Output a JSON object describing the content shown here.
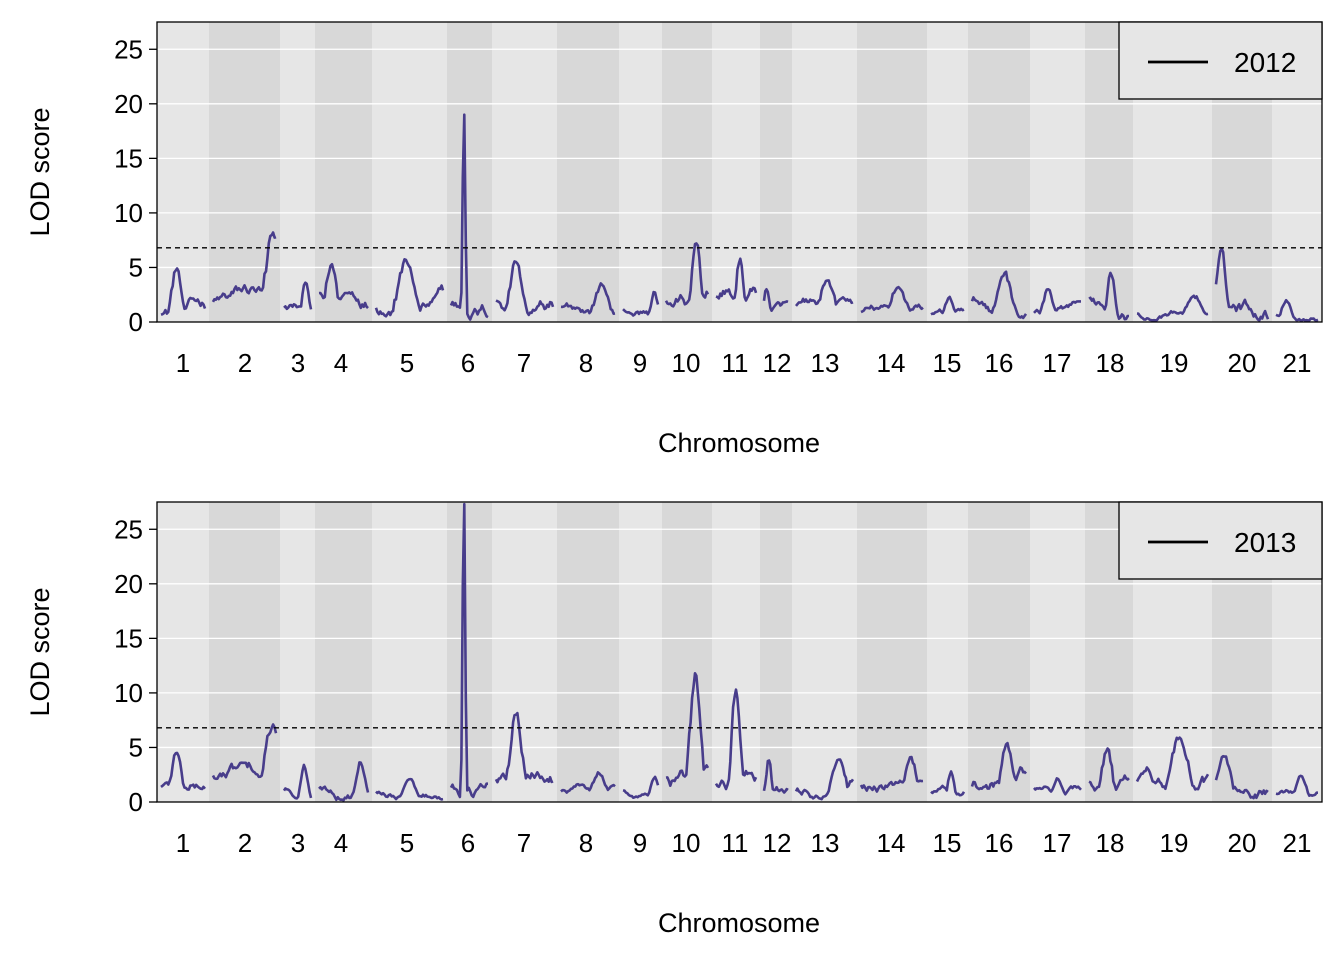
{
  "chart_data": [
    {
      "type": "line",
      "xlabel": "Chromosome",
      "ylabel": "LOD score",
      "ylim": [
        0,
        27.5
      ],
      "yticks": [
        0,
        5,
        10,
        15,
        20,
        25
      ],
      "threshold": 6.8,
      "threshold_style": "dashed",
      "grid": true,
      "legend_position": "top-right",
      "legend": [
        "2012"
      ],
      "line_color": "#483D8B",
      "chromosomes": [
        "1",
        "2",
        "3",
        "4",
        "5",
        "6",
        "7",
        "8",
        "9",
        "10",
        "11",
        "12",
        "13",
        "14",
        "15",
        "16",
        "17",
        "18",
        "19",
        "20",
        "21"
      ],
      "series": [
        {
          "name": "2012",
          "chromosome_peaks": [
            {
              "chr": "1",
              "peak": 4.9,
              "x": 0.35
            },
            {
              "chr": "2",
              "peak": 8.2,
              "x": 0.95
            },
            {
              "chr": "3",
              "peak": 3.6,
              "x": 0.8
            },
            {
              "chr": "4",
              "peak": 5.3,
              "x": 0.25
            },
            {
              "chr": "5",
              "peak": 5.7,
              "x": 0.45
            },
            {
              "chr": "6",
              "peak": 19.0,
              "x": 0.35
            },
            {
              "chr": "7",
              "peak": 5.5,
              "x": 0.35
            },
            {
              "chr": "8",
              "peak": 3.4,
              "x": 0.75
            },
            {
              "chr": "9",
              "peak": 2.7,
              "x": 0.9
            },
            {
              "chr": "10",
              "peak": 7.2,
              "x": 0.72
            },
            {
              "chr": "11",
              "peak": 5.8,
              "x": 0.6
            },
            {
              "chr": "12",
              "peak": 3.0,
              "x": 0.1
            },
            {
              "chr": "13",
              "peak": 3.8,
              "x": 0.55
            },
            {
              "chr": "14",
              "peak": 3.2,
              "x": 0.6
            },
            {
              "chr": "15",
              "peak": 2.3,
              "x": 0.55
            },
            {
              "chr": "16",
              "peak": 4.5,
              "x": 0.6
            },
            {
              "chr": "17",
              "peak": 3.0,
              "x": 0.3
            },
            {
              "chr": "18",
              "peak": 4.5,
              "x": 0.55
            },
            {
              "chr": "19",
              "peak": 2.4,
              "x": 0.8
            },
            {
              "chr": "20",
              "peak": 6.7,
              "x": 0.1
            },
            {
              "chr": "21",
              "peak": 2.0,
              "x": 0.25
            }
          ]
        }
      ]
    },
    {
      "type": "line",
      "xlabel": "Chromosome",
      "ylabel": "LOD score",
      "ylim": [
        0,
        27.5
      ],
      "yticks": [
        0,
        5,
        10,
        15,
        20,
        25
      ],
      "threshold": 6.8,
      "threshold_style": "dashed",
      "grid": true,
      "legend_position": "top-right",
      "legend": [
        "2013"
      ],
      "line_color": "#483D8B",
      "chromosomes": [
        "1",
        "2",
        "3",
        "4",
        "5",
        "6",
        "7",
        "8",
        "9",
        "10",
        "11",
        "12",
        "13",
        "14",
        "15",
        "16",
        "17",
        "18",
        "19",
        "20",
        "21"
      ],
      "series": [
        {
          "name": "2013",
          "chromosome_peaks": [
            {
              "chr": "1",
              "peak": 4.5,
              "x": 0.35
            },
            {
              "chr": "2",
              "peak": 7.1,
              "x": 0.95
            },
            {
              "chr": "3",
              "peak": 3.4,
              "x": 0.75
            },
            {
              "chr": "4",
              "peak": 3.6,
              "x": 0.85
            },
            {
              "chr": "5",
              "peak": 2.1,
              "x": 0.5
            },
            {
              "chr": "6",
              "peak": 27.3,
              "x": 0.35
            },
            {
              "chr": "7",
              "peak": 8.0,
              "x": 0.35
            },
            {
              "chr": "8",
              "peak": 2.6,
              "x": 0.7
            },
            {
              "chr": "9",
              "peak": 2.3,
              "x": 0.9
            },
            {
              "chr": "10",
              "peak": 11.8,
              "x": 0.7
            },
            {
              "chr": "11",
              "peak": 10.3,
              "x": 0.5
            },
            {
              "chr": "12",
              "peak": 3.8,
              "x": 0.2
            },
            {
              "chr": "13",
              "peak": 3.9,
              "x": 0.75
            },
            {
              "chr": "14",
              "peak": 4.1,
              "x": 0.8
            },
            {
              "chr": "15",
              "peak": 2.8,
              "x": 0.6
            },
            {
              "chr": "16",
              "peak": 5.4,
              "x": 0.65
            },
            {
              "chr": "17",
              "peak": 2.1,
              "x": 0.5
            },
            {
              "chr": "18",
              "peak": 4.9,
              "x": 0.45
            },
            {
              "chr": "19",
              "peak": 5.9,
              "x": 0.6
            },
            {
              "chr": "20",
              "peak": 4.2,
              "x": 0.15
            },
            {
              "chr": "21",
              "peak": 2.4,
              "x": 0.6
            }
          ]
        }
      ]
    }
  ]
}
